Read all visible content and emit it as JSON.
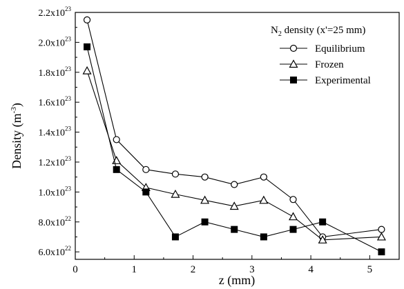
{
  "chart_data": {
    "type": "line",
    "xlabel": "z (mm)",
    "ylabel_main": "Density (m",
    "ylabel_sup": "-3",
    "ylabel_close": ")",
    "xlim": [
      0,
      5.5
    ],
    "ylim": [
      5.5e+22,
      2.2e+23
    ],
    "x_ticks": [
      {
        "value": 0,
        "label": "0"
      },
      {
        "value": 1,
        "label": "1"
      },
      {
        "value": 2,
        "label": "2"
      },
      {
        "value": 3,
        "label": "3"
      },
      {
        "value": 4,
        "label": "4"
      },
      {
        "value": 5,
        "label": "5"
      }
    ],
    "y_ticks": [
      {
        "value": 6e+22,
        "mant": "6.0x10",
        "exp": "22"
      },
      {
        "value": 8e+22,
        "mant": "8.0x10",
        "exp": "22"
      },
      {
        "value": 1e+23,
        "mant": "1.0x10",
        "exp": "23"
      },
      {
        "value": 1.2e+23,
        "mant": "1.2x10",
        "exp": "23"
      },
      {
        "value": 1.4e+23,
        "mant": "1.4x10",
        "exp": "23"
      },
      {
        "value": 1.6e+23,
        "mant": "1.6x10",
        "exp": "23"
      },
      {
        "value": 1.8e+23,
        "mant": "1.8x10",
        "exp": "23"
      },
      {
        "value": 2e+23,
        "mant": "2.0x10",
        "exp": "23"
      },
      {
        "value": 2.2e+23,
        "mant": "2.2x10",
        "exp": "23"
      }
    ],
    "legend": {
      "position": "top-right",
      "title_pre": "N",
      "title_sub": "2",
      "title_post": " density (x'=25 mm)"
    },
    "x": [
      0.2,
      0.7,
      1.2,
      1.7,
      2.2,
      2.7,
      3.2,
      3.7,
      4.2,
      5.2
    ],
    "series": [
      {
        "name": "Equilibrium",
        "marker": "circle-open",
        "values": [
          2.15e+23,
          1.35e+23,
          1.15e+23,
          1.12e+23,
          1.1e+23,
          1.05e+23,
          1.1e+23,
          9.5e+22,
          7e+22,
          7.5e+22
        ]
      },
      {
        "name": "Frozen",
        "marker": "triangle-open",
        "values": [
          1.81e+23,
          1.21e+23,
          1.03e+23,
          9.85e+22,
          9.45e+22,
          9.05e+22,
          9.45e+22,
          8.35e+22,
          6.8e+22,
          7e+22
        ]
      },
      {
        "name": "Experimental",
        "marker": "square-filled",
        "values": [
          1.97e+23,
          1.15e+23,
          1e+23,
          7e+22,
          8e+22,
          7.5e+22,
          7e+22,
          7.5e+22,
          8e+22,
          6e+22
        ]
      }
    ]
  }
}
